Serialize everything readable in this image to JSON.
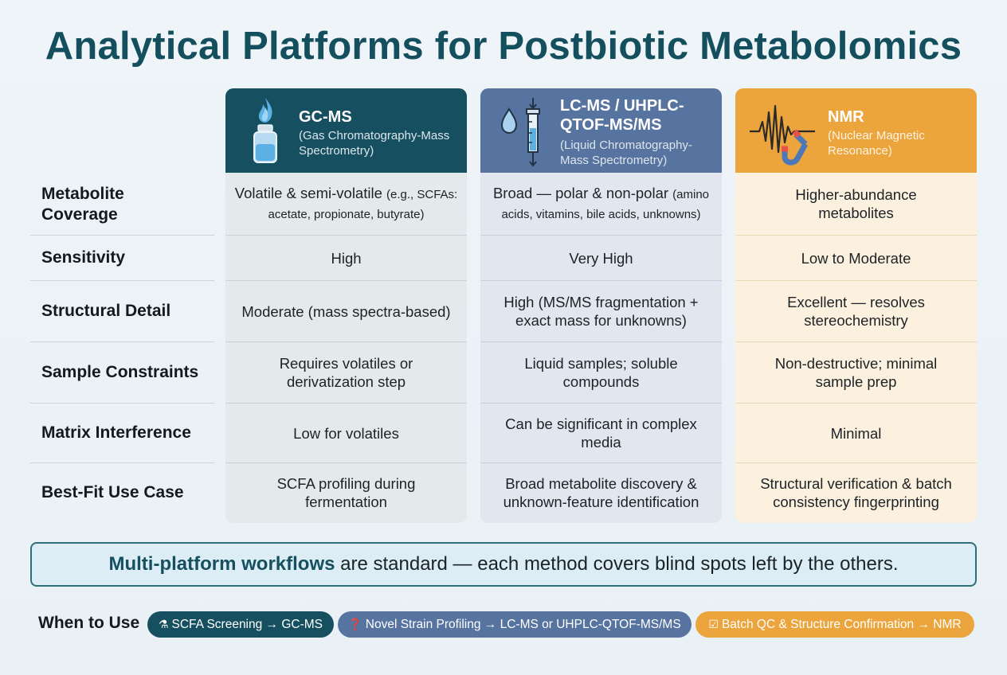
{
  "title": "Analytical Platforms for Postbiotic Metabolomics",
  "row_labels": [
    "Metabolite Coverage",
    "Sensitivity",
    "Structural Detail",
    "Sample Constraints",
    "Matrix Interference",
    "Best-Fit Use Case"
  ],
  "platforms": {
    "gc": {
      "name": "GC-MS",
      "full_name": "(Gas Chromatography-Mass Spectrometry)",
      "icon": "flame-vial-icon",
      "color": "#164f60",
      "coverage_main": "Volatile & semi-volatile",
      "coverage_detail": "(e.g., SCFAs: acetate, propionate, butyrate)",
      "sensitivity": "High",
      "structural_detail": "Moderate (mass spectra-based)",
      "sample_constraints": "Requires volatiles or derivatization step",
      "matrix_interference": "Low for volatiles",
      "best_fit": "SCFA profiling during fermentation"
    },
    "lc": {
      "name": "LC-MS / UHPLC-QTOF-MS/MS",
      "full_name": "(Liquid Chromatography-Mass Spectrometry)",
      "icon": "droplet-column-icon",
      "color": "#5773a0",
      "coverage_main": "Broad — polar & non-polar",
      "coverage_detail": "(amino acids, vitamins, bile acids, unknowns)",
      "sensitivity": "Very High",
      "structural_detail": "High (MS/MS fragmentation + exact mass for unknowns)",
      "sample_constraints": "Liquid samples; soluble compounds",
      "matrix_interference": "Can be significant in complex media",
      "best_fit": "Broad metabolite discovery & unknown-feature identification"
    },
    "nmr": {
      "name": "NMR",
      "full_name": "(Nuclear Magnetic Resonance)",
      "icon": "waveform-magnet-icon",
      "color": "#eca43c",
      "coverage_main": "Higher-abundance metabolites",
      "coverage_detail": "",
      "sensitivity": "Low to Moderate",
      "structural_detail": "Excellent — resolves stereochemistry",
      "sample_constraints": "Non-destructive; minimal sample prep",
      "matrix_interference": "Minimal",
      "best_fit": "Structural verification & batch consistency fingerprinting"
    }
  },
  "banner": {
    "bold": "Multi-platform workflows",
    "rest": " are standard — each method covers blind spots left by the others."
  },
  "when_to_use": {
    "label": "When to Use",
    "pills": [
      {
        "icon": "flask-icon",
        "glyph": "⚗",
        "text": "SCFA Screening → GC-MS"
      },
      {
        "icon": "question-icon",
        "glyph": "❓",
        "text": "Novel Strain Profiling → LC-MS or UHPLC-QTOF-MS/MS"
      },
      {
        "icon": "checkbox-icon",
        "glyph": "☑",
        "text": "Batch QC & Structure Confirmation → NMR"
      }
    ]
  }
}
